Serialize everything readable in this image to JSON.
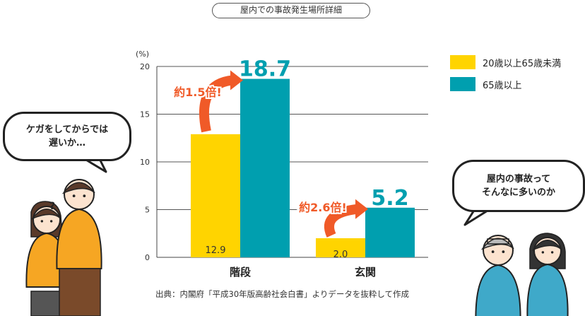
{
  "title": "屋内での事故発生場所詳細",
  "unit": "(%)",
  "source": "出典：内閣府「平成30年版高齢社会白書」よりデータを抜粋して作成",
  "colors": {
    "yellow": "#FFD400",
    "teal": "#009FAF",
    "arrow": "#F05A28"
  },
  "legend": [
    {
      "label": "20歳以上65歳未満",
      "color": "#FFD400"
    },
    {
      "label": "65歳以上",
      "color": "#009FAF"
    }
  ],
  "bubbles": {
    "left": [
      "ケガをしてからでは",
      "遅いか…"
    ],
    "right": [
      "屋内の事故って",
      "そんなに多いのか"
    ]
  },
  "chart_data": {
    "type": "bar",
    "categories": [
      "階段",
      "玄関"
    ],
    "series": [
      {
        "name": "20歳以上65歳未満",
        "values": [
          12.9,
          2.0
        ],
        "labels": [
          "12.9",
          "2.0"
        ]
      },
      {
        "name": "65歳以上",
        "values": [
          18.7,
          5.2
        ],
        "labels": [
          "18.7",
          "5.2"
        ]
      }
    ],
    "ylim": [
      0,
      20
    ],
    "yticks": [
      0,
      5,
      10,
      15,
      20
    ],
    "ratio_annotations": [
      "約1.5倍!",
      "約2.6倍!"
    ],
    "grid": true,
    "legend_position": "right"
  }
}
